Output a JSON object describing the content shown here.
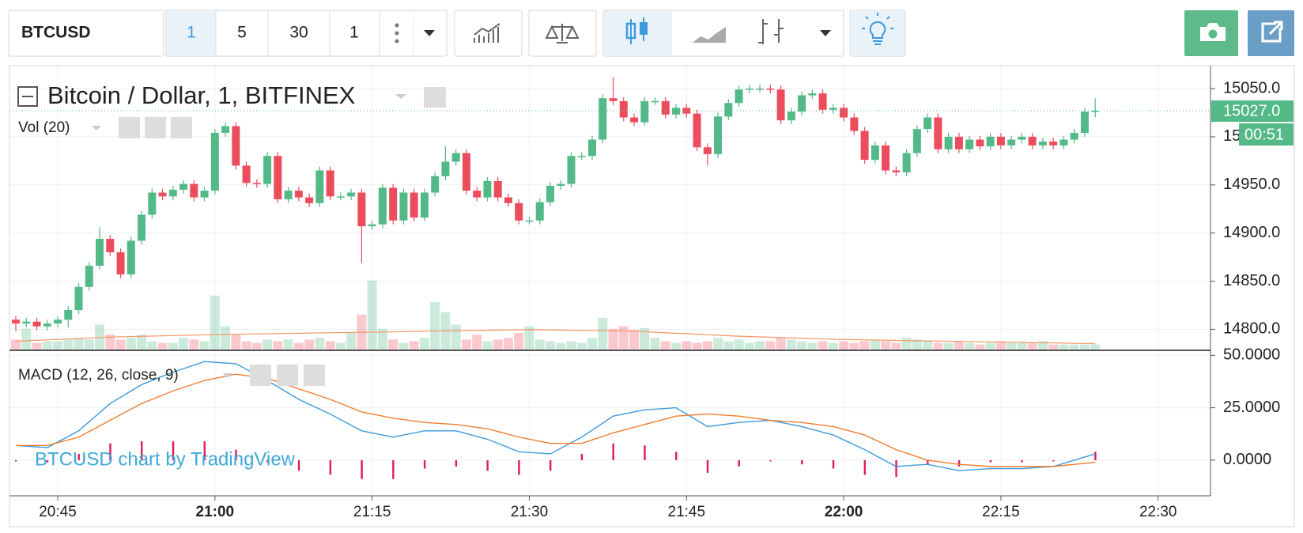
{
  "toolbar": {
    "symbol": "BTCUSD",
    "intervals": [
      "1",
      "5",
      "30",
      "1"
    ]
  },
  "watermark": "BTCUSD chart by TradingView",
  "chart_data": [
    {
      "type": "candlestick",
      "title": "Bitcoin / Dollar, 1, BITFINEX",
      "x": [
        "20:41",
        "20:42",
        "20:43",
        "20:44",
        "20:45",
        "20:46",
        "20:47",
        "20:48",
        "20:49",
        "20:50",
        "20:51",
        "20:52",
        "20:53",
        "20:54",
        "20:55",
        "20:56",
        "20:57",
        "20:58",
        "20:59",
        "21:00",
        "21:01",
        "21:02",
        "21:03",
        "21:04",
        "21:05",
        "21:06",
        "21:07",
        "21:08",
        "21:09",
        "21:10",
        "21:11",
        "21:12",
        "21:13",
        "21:14",
        "21:15",
        "21:16",
        "21:17",
        "21:18",
        "21:19",
        "21:20",
        "21:21",
        "21:22",
        "21:23",
        "21:24",
        "21:25",
        "21:26",
        "21:27",
        "21:28",
        "21:29",
        "21:30",
        "21:31",
        "21:32",
        "21:33",
        "21:34",
        "21:35",
        "21:36",
        "21:37",
        "21:38",
        "21:39",
        "21:40",
        "21:41",
        "21:42",
        "21:43",
        "21:44",
        "21:45",
        "21:46",
        "21:47",
        "21:48",
        "21:49",
        "21:50",
        "21:51",
        "21:52",
        "21:53",
        "21:54",
        "21:55",
        "21:56",
        "21:57",
        "21:58",
        "21:59",
        "22:00",
        "22:01",
        "22:02",
        "22:03",
        "22:04",
        "22:05",
        "22:06",
        "22:07",
        "22:08",
        "22:09",
        "22:10",
        "22:11",
        "22:12",
        "22:13",
        "22:14",
        "22:15",
        "22:16",
        "22:17",
        "22:18",
        "22:19",
        "22:20",
        "22:21",
        "22:22",
        "22:23",
        "22:24"
      ],
      "open": [
        14810,
        14806,
        14808,
        14803,
        14806,
        14810,
        14820,
        14844,
        14866,
        14894,
        14880,
        14857,
        14892,
        14919,
        14942,
        14938,
        14945,
        14951,
        14937,
        14944,
        15004,
        15011,
        14970,
        14952,
        14951,
        14980,
        14935,
        14944,
        14937,
        14931,
        14965,
        14938,
        14938,
        14942,
        14907,
        14909,
        14947,
        14913,
        14942,
        14916,
        14942,
        14959,
        14974,
        14983,
        14944,
        14937,
        14954,
        14937,
        14931,
        14913,
        14913,
        14932,
        14949,
        14951,
        14980,
        14980,
        14997,
        15040,
        15037,
        15020,
        15015,
        15037,
        15037,
        15023,
        15030,
        15024,
        14989,
        14982,
        15021,
        15035,
        15049,
        15050,
        15050,
        15049,
        15017,
        15026,
        15043,
        15045,
        15028,
        15030,
        15020,
        15006,
        14976,
        14991,
        14965,
        14963,
        14983,
        15008,
        15020,
        14987,
        15000,
        14987,
        14997,
        14990,
        15000,
        14991,
        14997,
        15000,
        14991,
        14995,
        14991,
        14997,
        15004,
        15026
      ],
      "high": [
        14814,
        14812,
        14812,
        14810,
        14814,
        14824,
        14848,
        14870,
        14906,
        14898,
        14884,
        14896,
        14923,
        14946,
        14946,
        14949,
        14955,
        14955,
        14948,
        15008,
        15015,
        15015,
        14974,
        14956,
        14984,
        14984,
        14948,
        14948,
        14941,
        14969,
        14969,
        14942,
        14946,
        14946,
        14913,
        14951,
        14951,
        14946,
        14946,
        14946,
        14963,
        14990,
        14987,
        14987,
        14948,
        14958,
        14958,
        14941,
        14935,
        14917,
        14936,
        14953,
        14955,
        14984,
        14984,
        15001,
        15044,
        15062,
        15041,
        15024,
        15041,
        15041,
        15041,
        15034,
        15034,
        15028,
        14993,
        15025,
        15039,
        15053,
        15054,
        15054,
        15054,
        15053,
        15030,
        15047,
        15049,
        15049,
        15034,
        15034,
        15024,
        15010,
        14995,
        14995,
        14969,
        14987,
        15012,
        15024,
        15024,
        15004,
        15004,
        15001,
        15001,
        15004,
        15004,
        15001,
        15004,
        15004,
        14999,
        14999,
        15001,
        15008,
        15030,
        15040
      ],
      "low": [
        14798,
        14802,
        14799,
        14799,
        14802,
        14802,
        14816,
        14840,
        14862,
        14876,
        14853,
        14853,
        14888,
        14915,
        14934,
        14934,
        14941,
        14933,
        14933,
        14940,
        15000,
        14966,
        14948,
        14947,
        14947,
        14931,
        14931,
        14933,
        14927,
        14927,
        14934,
        14934,
        14934,
        14869,
        14903,
        14905,
        14909,
        14909,
        14912,
        14912,
        14938,
        14955,
        14970,
        14940,
        14933,
        14933,
        14933,
        14927,
        14909,
        14909,
        14909,
        14928,
        14945,
        14947,
        14976,
        14976,
        14993,
        15033,
        15016,
        15011,
        15011,
        15033,
        15019,
        15019,
        15020,
        14985,
        14970,
        14978,
        15017,
        15031,
        15045,
        15046,
        15045,
        15013,
        15013,
        15022,
        15039,
        15024,
        15024,
        15016,
        15002,
        14972,
        14972,
        14961,
        14959,
        14959,
        14979,
        15004,
        14983,
        14983,
        14983,
        14983,
        14986,
        14986,
        14987,
        14987,
        14993,
        14987,
        14987,
        14987,
        14987,
        14993,
        15000,
        15020
      ],
      "close": [
        14806,
        14808,
        14803,
        14806,
        14810,
        14820,
        14844,
        14866,
        14894,
        14880,
        14857,
        14892,
        14919,
        14942,
        14938,
        14945,
        14951,
        14937,
        14944,
        15004,
        15011,
        14970,
        14952,
        14951,
        14980,
        14935,
        14944,
        14937,
        14931,
        14965,
        14938,
        14938,
        14942,
        14907,
        14909,
        14947,
        14913,
        14942,
        14916,
        14942,
        14959,
        14974,
        14983,
        14944,
        14937,
        14954,
        14937,
        14931,
        14913,
        14913,
        14932,
        14949,
        14951,
        14980,
        14980,
        14997,
        15040,
        15037,
        15020,
        15015,
        15037,
        15037,
        15023,
        15030,
        15024,
        14989,
        14982,
        15021,
        15035,
        15049,
        15050,
        15050,
        15049,
        15017,
        15026,
        15043,
        15045,
        15028,
        15030,
        15020,
        15006,
        14976,
        14991,
        14965,
        14963,
        14983,
        15008,
        15020,
        14987,
        15000,
        14987,
        14997,
        14990,
        15000,
        14991,
        14997,
        15000,
        14991,
        14995,
        14991,
        14997,
        15004,
        15026,
        15027
      ],
      "up_color": "#53b987",
      "down_color": "#eb4d5c",
      "volume": {
        "name": "Vol (20)",
        "values": [
          12,
          25,
          8,
          10,
          10,
          12,
          14,
          12,
          30,
          18,
          12,
          14,
          18,
          10,
          8,
          8,
          14,
          12,
          10,
          65,
          28,
          18,
          10,
          8,
          12,
          10,
          12,
          8,
          12,
          14,
          10,
          8,
          20,
          42,
          83,
          25,
          12,
          8,
          10,
          14,
          57,
          45,
          30,
          12,
          18,
          10,
          12,
          14,
          20,
          28,
          12,
          10,
          8,
          10,
          8,
          14,
          38,
          25,
          28,
          24,
          26,
          14,
          10,
          8,
          10,
          8,
          10,
          14,
          10,
          12,
          8,
          10,
          10,
          14,
          12,
          10,
          8,
          10,
          8,
          10,
          8,
          10,
          12,
          10,
          8,
          14,
          12,
          10,
          8,
          8,
          10,
          8,
          6,
          8,
          10,
          8,
          8,
          8,
          10,
          6,
          6,
          6,
          6,
          6
        ],
        "ma": {
          "x": [
            "20:41",
            "20:50",
            "21:00",
            "21:10",
            "21:20",
            "21:30",
            "21:40",
            "21:50",
            "22:00",
            "22:10",
            "22:20",
            "22:24"
          ],
          "values": [
            10,
            15,
            18,
            20,
            22,
            24,
            22,
            16,
            12,
            10,
            8,
            7
          ],
          "color": "#f39c6b"
        }
      },
      "ylim": [
        14779,
        15073
      ],
      "yticks": [
        {
          "value": 14800,
          "label": "14800.0"
        },
        {
          "value": 14850,
          "label": "14850.0"
        },
        {
          "value": 14900,
          "label": "14900.0"
        },
        {
          "value": 14950,
          "label": "14950.0"
        },
        {
          "value": 15000,
          "label": "15000.0"
        },
        {
          "value": 15050,
          "label": "15050.0"
        }
      ],
      "last_price": {
        "value": 15027,
        "label": "15027.0"
      },
      "countdown": "00:51",
      "xlim": [
        "20:41",
        "22:35"
      ],
      "grid": true
    },
    {
      "type": "macd",
      "title": "MACD (12, 26, close, 9)",
      "x": [
        "20:41",
        "20:44",
        "20:47",
        "20:50",
        "20:53",
        "20:56",
        "20:59",
        "21:02",
        "21:05",
        "21:08",
        "21:11",
        "21:14",
        "21:17",
        "21:20",
        "21:23",
        "21:26",
        "21:29",
        "21:32",
        "21:35",
        "21:38",
        "21:41",
        "21:44",
        "21:47",
        "21:50",
        "21:53",
        "21:56",
        "21:59",
        "22:02",
        "22:05",
        "22:08",
        "22:11",
        "22:14",
        "22:17",
        "22:20",
        "22:24"
      ],
      "series": [
        {
          "color": "#3d9bdc",
          "values": [
            7,
            6,
            14,
            27,
            36,
            42,
            47,
            46,
            38,
            29,
            22,
            14,
            11,
            14,
            14,
            10,
            4,
            3,
            11,
            21,
            24,
            25,
            16,
            18,
            19,
            16,
            12,
            5,
            -3,
            -2,
            -5,
            -4,
            -4,
            -3,
            3
          ]
        },
        {
          "color": "#f07d2e",
          "values": [
            7,
            7,
            11,
            19,
            27,
            33,
            38,
            41,
            39,
            34,
            29,
            23,
            20,
            18,
            17,
            15,
            11,
            8,
            8,
            13,
            17,
            21,
            22,
            21,
            19,
            18,
            16,
            12,
            5,
            0,
            -2,
            -3,
            -3,
            -3,
            -1
          ]
        }
      ],
      "histogram": {
        "color": "#e0195f",
        "values": [
          0,
          -1,
          3,
          8,
          9,
          9,
          9,
          5,
          -1,
          -5,
          -7,
          -9,
          -9,
          -4,
          -3,
          -5,
          -7,
          -5,
          3,
          8,
          7,
          4,
          -6,
          -3,
          0,
          -2,
          -4,
          -7,
          -8,
          -2,
          -3,
          -1,
          -1,
          0,
          4
        ]
      },
      "ylim": [
        -17,
        52
      ],
      "yticks": [
        {
          "value": 0,
          "label": "0.0000"
        },
        {
          "value": 25,
          "label": "25.0000"
        },
        {
          "value": 50,
          "label": "50.0000"
        }
      ],
      "xlim": [
        "20:41",
        "22:35"
      ],
      "xticks": [
        "20:45",
        "21:00",
        "21:15",
        "21:30",
        "21:45",
        "22:00",
        "22:15",
        "22:30"
      ],
      "grid": true
    }
  ]
}
